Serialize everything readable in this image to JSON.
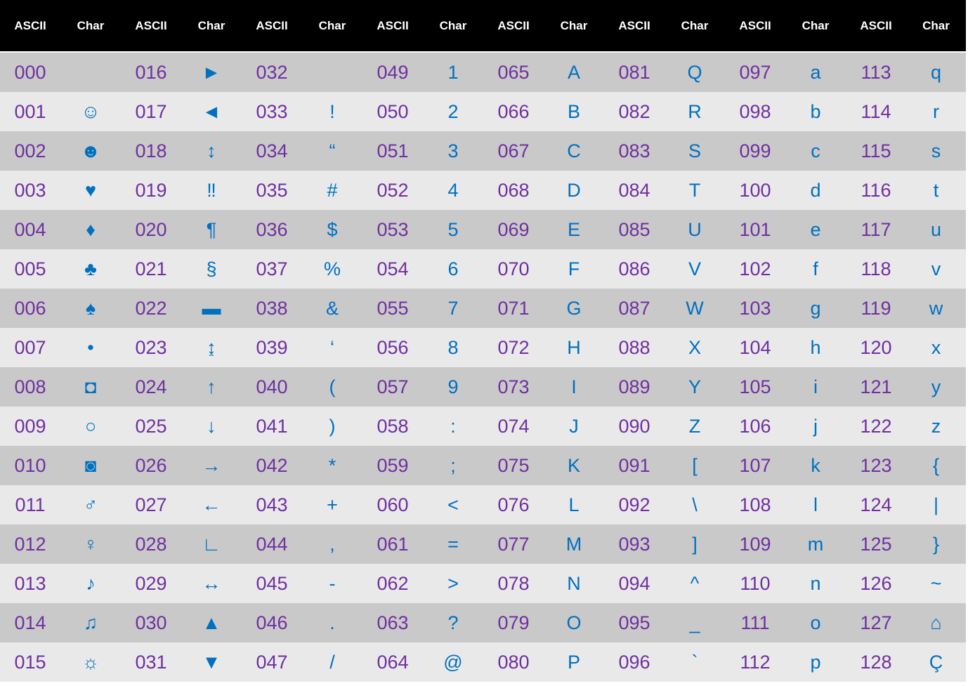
{
  "header": [
    "ASCII",
    "Char",
    "ASCII",
    "Char",
    "ASCII",
    "Char",
    "ASCII",
    "Char",
    "ASCII",
    "Char",
    "ASCII",
    "Char",
    "ASCII",
    "Char",
    "ASCII",
    "Char"
  ],
  "colors": {
    "header_bg": "#000000",
    "header_text": "#ffffff",
    "row_dark": "#c9c9c9",
    "row_light": "#e9e9e9",
    "code_text": "#7030a0",
    "char_text": "#0070c0"
  },
  "rows": [
    [
      {
        "code": "000",
        "char": ""
      },
      {
        "code": "016",
        "char": "►"
      },
      {
        "code": "032",
        "char": ""
      },
      {
        "code": "049",
        "char": "1"
      },
      {
        "code": "065",
        "char": "A"
      },
      {
        "code": "081",
        "char": "Q"
      },
      {
        "code": "097",
        "char": "a"
      },
      {
        "code": "113",
        "char": "q"
      }
    ],
    [
      {
        "code": "001",
        "char": "☺"
      },
      {
        "code": "017",
        "char": "◄"
      },
      {
        "code": "033",
        "char": "!"
      },
      {
        "code": "050",
        "char": "2"
      },
      {
        "code": "066",
        "char": "B"
      },
      {
        "code": "082",
        "char": "R"
      },
      {
        "code": "098",
        "char": "b"
      },
      {
        "code": "114",
        "char": "r"
      }
    ],
    [
      {
        "code": "002",
        "char": "☻"
      },
      {
        "code": "018",
        "char": "↕"
      },
      {
        "code": "034",
        "char": "“"
      },
      {
        "code": "051",
        "char": "3"
      },
      {
        "code": "067",
        "char": "C"
      },
      {
        "code": "083",
        "char": "S"
      },
      {
        "code": "099",
        "char": "c"
      },
      {
        "code": "115",
        "char": "s"
      }
    ],
    [
      {
        "code": "003",
        "char": "♥"
      },
      {
        "code": "019",
        "char": "‼"
      },
      {
        "code": "035",
        "char": "#"
      },
      {
        "code": "052",
        "char": "4"
      },
      {
        "code": "068",
        "char": "D"
      },
      {
        "code": "084",
        "char": "T"
      },
      {
        "code": "100",
        "char": "d"
      },
      {
        "code": "116",
        "char": "t"
      }
    ],
    [
      {
        "code": "004",
        "char": "♦"
      },
      {
        "code": "020",
        "char": "¶"
      },
      {
        "code": "036",
        "char": "$"
      },
      {
        "code": "053",
        "char": "5"
      },
      {
        "code": "069",
        "char": "E"
      },
      {
        "code": "085",
        "char": "U"
      },
      {
        "code": "101",
        "char": "e"
      },
      {
        "code": "117",
        "char": "u"
      }
    ],
    [
      {
        "code": "005",
        "char": "♣"
      },
      {
        "code": "021",
        "char": "§"
      },
      {
        "code": "037",
        "char": "%"
      },
      {
        "code": "054",
        "char": "6"
      },
      {
        "code": "070",
        "char": "F"
      },
      {
        "code": "086",
        "char": "V"
      },
      {
        "code": "102",
        "char": "f"
      },
      {
        "code": "118",
        "char": "v"
      }
    ],
    [
      {
        "code": "006",
        "char": "♠"
      },
      {
        "code": "022",
        "char": "▬"
      },
      {
        "code": "038",
        "char": "&"
      },
      {
        "code": "055",
        "char": "7"
      },
      {
        "code": "071",
        "char": "G"
      },
      {
        "code": "087",
        "char": "W"
      },
      {
        "code": "103",
        "char": "g"
      },
      {
        "code": "119",
        "char": "w"
      }
    ],
    [
      {
        "code": "007",
        "char": "•"
      },
      {
        "code": "023",
        "char": "↨"
      },
      {
        "code": "039",
        "char": "‘"
      },
      {
        "code": "056",
        "char": "8"
      },
      {
        "code": "072",
        "char": "H"
      },
      {
        "code": "088",
        "char": "X"
      },
      {
        "code": "104",
        "char": "h"
      },
      {
        "code": "120",
        "char": "x"
      }
    ],
    [
      {
        "code": "008",
        "char": "◘"
      },
      {
        "code": "024",
        "char": "↑"
      },
      {
        "code": "040",
        "char": "("
      },
      {
        "code": "057",
        "char": "9"
      },
      {
        "code": "073",
        "char": "I"
      },
      {
        "code": "089",
        "char": "Y"
      },
      {
        "code": "105",
        "char": "i"
      },
      {
        "code": "121",
        "char": "y"
      }
    ],
    [
      {
        "code": "009",
        "char": "○"
      },
      {
        "code": "025",
        "char": "↓"
      },
      {
        "code": "041",
        "char": ")"
      },
      {
        "code": "058",
        "char": ":"
      },
      {
        "code": "074",
        "char": "J"
      },
      {
        "code": "090",
        "char": "Z"
      },
      {
        "code": "106",
        "char": "j"
      },
      {
        "code": "122",
        "char": "z"
      }
    ],
    [
      {
        "code": "010",
        "char": "◙"
      },
      {
        "code": "026",
        "char": "→"
      },
      {
        "code": "042",
        "char": "*"
      },
      {
        "code": "059",
        "char": ";"
      },
      {
        "code": "075",
        "char": "K"
      },
      {
        "code": "091",
        "char": "["
      },
      {
        "code": "107",
        "char": "k"
      },
      {
        "code": "123",
        "char": "{"
      }
    ],
    [
      {
        "code": "011",
        "char": "♂"
      },
      {
        "code": "027",
        "char": "←"
      },
      {
        "code": "043",
        "char": "+"
      },
      {
        "code": "060",
        "char": "<"
      },
      {
        "code": "076",
        "char": "L"
      },
      {
        "code": "092",
        "char": "\\"
      },
      {
        "code": "108",
        "char": "l"
      },
      {
        "code": "124",
        "char": "|"
      }
    ],
    [
      {
        "code": "012",
        "char": "♀"
      },
      {
        "code": "028",
        "char": "∟"
      },
      {
        "code": "044",
        "char": ","
      },
      {
        "code": "061",
        "char": "="
      },
      {
        "code": "077",
        "char": "M"
      },
      {
        "code": "093",
        "char": "]"
      },
      {
        "code": "109",
        "char": "m"
      },
      {
        "code": "125",
        "char": "}"
      }
    ],
    [
      {
        "code": "013",
        "char": "♪"
      },
      {
        "code": "029",
        "char": "↔"
      },
      {
        "code": "045",
        "char": "-"
      },
      {
        "code": "062",
        "char": ">"
      },
      {
        "code": "078",
        "char": "N"
      },
      {
        "code": "094",
        "char": "^"
      },
      {
        "code": "110",
        "char": "n"
      },
      {
        "code": "126",
        "char": "~"
      }
    ],
    [
      {
        "code": "014",
        "char": "♫"
      },
      {
        "code": "030",
        "char": "▲"
      },
      {
        "code": "046",
        "char": "."
      },
      {
        "code": "063",
        "char": "?"
      },
      {
        "code": "079",
        "char": "O"
      },
      {
        "code": "095",
        "char": "_"
      },
      {
        "code": "111",
        "char": "o"
      },
      {
        "code": "127",
        "char": "⌂"
      }
    ],
    [
      {
        "code": "015",
        "char": "☼"
      },
      {
        "code": "031",
        "char": "▼"
      },
      {
        "code": "047",
        "char": "/"
      },
      {
        "code": "064",
        "char": "@"
      },
      {
        "code": "080",
        "char": "P"
      },
      {
        "code": "096",
        "char": "`"
      },
      {
        "code": "112",
        "char": "p"
      },
      {
        "code": "128",
        "char": "Ç"
      }
    ]
  ]
}
